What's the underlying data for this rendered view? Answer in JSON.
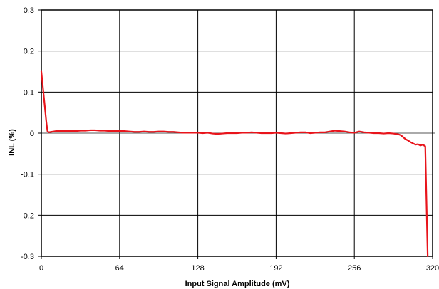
{
  "chart_data": {
    "type": "line",
    "title": "",
    "xlabel": "Input Signal Amplitude (mV)",
    "ylabel": "INL (%)",
    "xlim": [
      0,
      320
    ],
    "ylim": [
      -0.3,
      0.3
    ],
    "x_ticks": [
      0,
      64,
      128,
      192,
      256,
      320
    ],
    "x_tick_labels": [
      "0",
      "64",
      "128",
      "192",
      "256",
      "320"
    ],
    "y_ticks": [
      0.3,
      0.2,
      0.1,
      0,
      -0.1,
      -0.2,
      -0.3
    ],
    "y_tick_labels": [
      "0.3",
      "0.2",
      "0.1",
      "0",
      "-0.1",
      "-0.2",
      "-0.3"
    ],
    "grid": true,
    "legend": "none",
    "series": [
      {
        "color": "#e8141b",
        "x": [
          0,
          1,
          2,
          3,
          4,
          5,
          6,
          8,
          10,
          12,
          16,
          20,
          24,
          28,
          32,
          36,
          40,
          44,
          48,
          52,
          56,
          60,
          64,
          68,
          72,
          76,
          80,
          84,
          88,
          92,
          96,
          100,
          104,
          108,
          112,
          116,
          120,
          124,
          128,
          132,
          136,
          140,
          144,
          148,
          152,
          156,
          160,
          164,
          168,
          172,
          176,
          180,
          184,
          188,
          192,
          196,
          200,
          204,
          208,
          212,
          216,
          220,
          224,
          228,
          232,
          236,
          240,
          244,
          248,
          252,
          256,
          260,
          264,
          268,
          272,
          276,
          280,
          284,
          288,
          292,
          294,
          296,
          298,
          300,
          302,
          304,
          306,
          308,
          310,
          312,
          314,
          316
        ],
        "y": [
          0.15,
          0.12,
          0.09,
          0.06,
          0.03,
          0.005,
          0.002,
          0.003,
          0.004,
          0.005,
          0.005,
          0.005,
          0.005,
          0.005,
          0.006,
          0.006,
          0.007,
          0.007,
          0.006,
          0.006,
          0.005,
          0.005,
          0.005,
          0.005,
          0.004,
          0.003,
          0.003,
          0.004,
          0.003,
          0.003,
          0.004,
          0.004,
          0.003,
          0.003,
          0.002,
          0.001,
          0.001,
          0.001,
          0.001,
          0.0,
          0.001,
          -0.001,
          -0.002,
          -0.001,
          0.0,
          0.0,
          0.0,
          0.001,
          0.001,
          0.002,
          0.001,
          0.0,
          0.0,
          0.0,
          0.001,
          0.0,
          -0.001,
          0.0,
          0.001,
          0.002,
          0.002,
          0.0,
          0.001,
          0.002,
          0.002,
          0.004,
          0.006,
          0.005,
          0.004,
          0.002,
          0.001,
          0.004,
          0.002,
          0.001,
          0.0,
          0.0,
          -0.001,
          0.0,
          -0.001,
          -0.003,
          -0.005,
          -0.01,
          -0.015,
          -0.018,
          -0.022,
          -0.025,
          -0.028,
          -0.027,
          -0.03,
          -0.028,
          -0.032,
          -0.3
        ]
      }
    ]
  }
}
